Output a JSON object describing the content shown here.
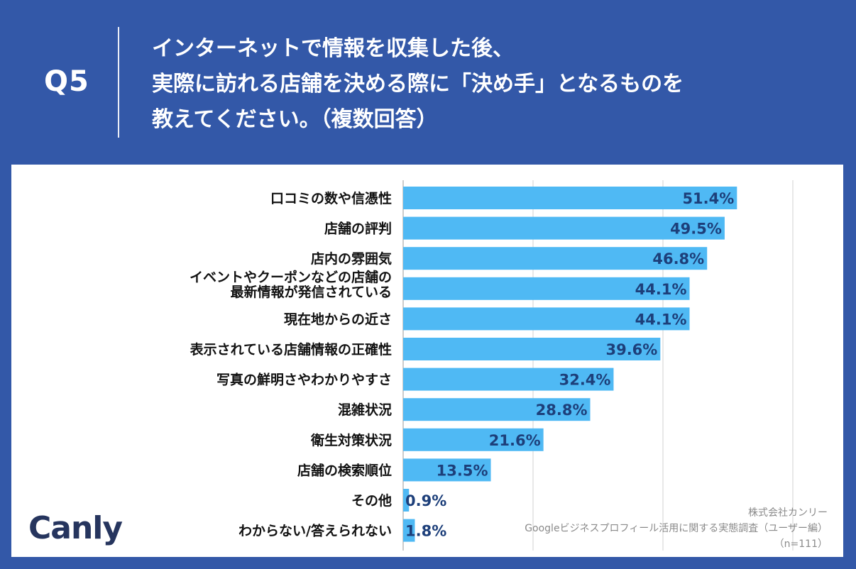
{
  "header": {
    "q_label": "Q5",
    "question_lines": [
      "インターネットで情報を収集した後、",
      "実際に訪れる店舗を決める際に「決め手」となるものを",
      "教えてください。（複数回答）"
    ]
  },
  "logo": {
    "text_main": "Canl",
    "text_y": "y"
  },
  "source": {
    "company": "株式会社カンリー",
    "survey": "Googleビジネスプロフィール活用に関する実態調査（ユーザー編）",
    "n": "（n=111）"
  },
  "colors": {
    "bar": "#4fb9f4",
    "label_on_bar": "#1d3f7a",
    "header_bg": "#3358a8",
    "grid": "#d0d0d0"
  },
  "chart_data": {
    "type": "bar",
    "orientation": "horizontal",
    "unit": "%",
    "xlim": [
      0,
      100
    ],
    "grid": true,
    "categories": [
      [
        "口コミの数や信憑性"
      ],
      [
        "店舗の評判"
      ],
      [
        "店内の雰囲気"
      ],
      [
        "イベントやクーポンなどの店舗の",
        "最新情報が発信されている"
      ],
      [
        "現在地からの近さ"
      ],
      [
        "表示されている店舗情報の正確性"
      ],
      [
        "写真の鮮明さやわかりやすさ"
      ],
      [
        "混雑状況"
      ],
      [
        "衛生対策状況"
      ],
      [
        "店舗の検索順位"
      ],
      [
        "その他"
      ],
      [
        "わからない/答えられない"
      ]
    ],
    "values": [
      51.4,
      49.5,
      46.8,
      44.1,
      44.1,
      39.6,
      32.4,
      28.8,
      21.6,
      13.5,
      0.9,
      1.8
    ],
    "value_labels": [
      "51.4%",
      "49.5%",
      "46.8%",
      "44.1%",
      "44.1%",
      "39.6%",
      "32.4%",
      "28.8%",
      "21.6%",
      "13.5%",
      "0.9%",
      "1.8%"
    ]
  }
}
